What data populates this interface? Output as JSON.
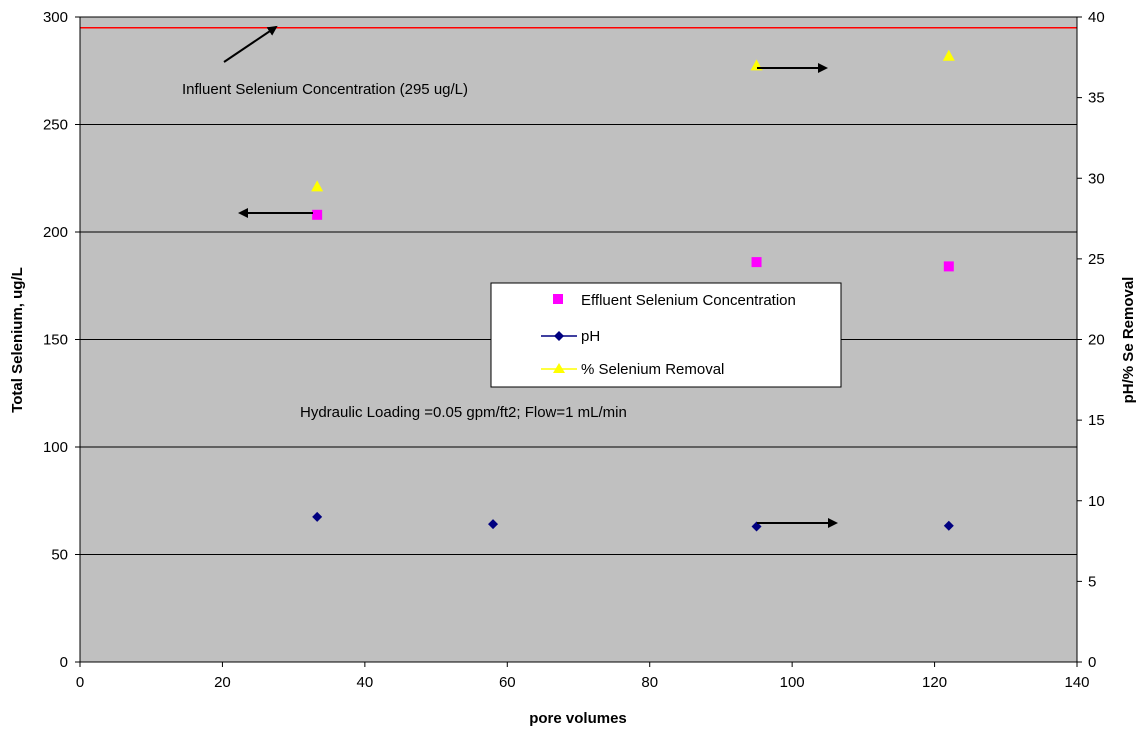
{
  "chart_data": {
    "type": "scatter",
    "xlabel": "pore volumes",
    "ylabel": "Total Selenium, ug/L",
    "y2label": "pH/% Se Removal",
    "xlim": [
      0,
      140
    ],
    "ylim": [
      0,
      300
    ],
    "y2lim": [
      0,
      40
    ],
    "x_ticks": [
      "0",
      "20",
      "40",
      "60",
      "80",
      "100",
      "120",
      "140"
    ],
    "y_ticks": [
      "0",
      "50",
      "100",
      "150",
      "200",
      "250",
      "300"
    ],
    "y2_ticks": [
      "0",
      "5",
      "10",
      "15",
      "20",
      "25",
      "30",
      "35",
      "40"
    ],
    "grid": "horizontal",
    "plot_background": "#c0c0c0",
    "legend_position": "center",
    "series": [
      {
        "name": "Effluent Selenium Concentration",
        "axis": "left",
        "marker": "square",
        "color": "#ff00ff",
        "x": [
          33.3,
          95,
          122
        ],
        "values": [
          208,
          186,
          184
        ]
      },
      {
        "name": "pH",
        "axis": "right",
        "marker": "diamond",
        "color": "#000080",
        "x": [
          33.3,
          58,
          95,
          122
        ],
        "values": [
          9.0,
          8.55,
          8.4,
          8.45
        ]
      },
      {
        "name": "% Selenium Removal",
        "axis": "right",
        "marker": "triangle",
        "color": "#ffff00",
        "x": [
          33.3,
          95,
          122
        ],
        "values": [
          29.5,
          37.0,
          37.6
        ]
      }
    ],
    "reference_line": {
      "axis": "left",
      "y": 295,
      "color": "#ff0000"
    },
    "annotations": [
      {
        "id": "influent",
        "text": "Influent Selenium Concentration (295 ug/L)"
      },
      {
        "id": "hydraulic",
        "text": "Hydraulic Loading =0.05 gpm/ft2; Flow=1 mL/min"
      }
    ]
  }
}
